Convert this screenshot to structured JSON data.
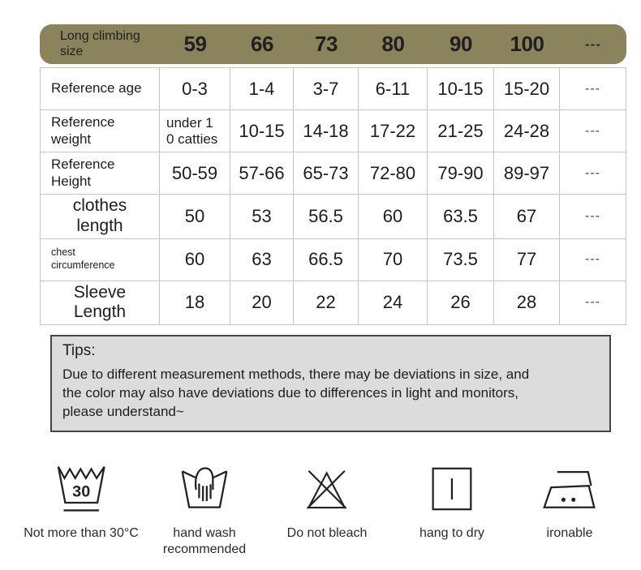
{
  "table": {
    "header": {
      "label": "Long climbing\nsize",
      "sizes": [
        "59",
        "66",
        "73",
        "80",
        "90",
        "100",
        "---"
      ]
    },
    "rows": [
      {
        "label": "Reference age",
        "style": "normal",
        "values": [
          "0-3",
          "1-4",
          "3-7",
          "6-11",
          "10-15",
          "15-20",
          "---"
        ]
      },
      {
        "label": "Reference\nweight",
        "style": "normal",
        "values": [
          "under 1\n0 catties",
          "10-15",
          "14-18",
          "17-22",
          "21-25",
          "24-28",
          "---"
        ]
      },
      {
        "label": "Reference\nHeight",
        "style": "normal",
        "values": [
          "50-59",
          "57-66",
          "65-73",
          "72-80",
          "79-90",
          "89-97",
          "---"
        ]
      },
      {
        "label": "clothes\nlength",
        "style": "big",
        "values": [
          "50",
          "53",
          "56.5",
          "60",
          "63.5",
          "67",
          "---"
        ]
      },
      {
        "label": "chest\ncircumference",
        "style": "small",
        "values": [
          "60",
          "63",
          "66.5",
          "70",
          "73.5",
          "77",
          "---"
        ]
      },
      {
        "label": "Sleeve\nLength",
        "style": "big",
        "values": [
          "18",
          "20",
          "22",
          "24",
          "26",
          "28",
          "---"
        ]
      }
    ]
  },
  "tips": {
    "title": "Tips:",
    "body": "Due to different measurement methods, there may be deviations in size, and the color may also have deviations due to differences in light and monitors, please understand~"
  },
  "care": {
    "wash_temp": "30",
    "items": [
      {
        "icon": "wash-30-icon",
        "label": "Not more than 30°C"
      },
      {
        "icon": "hand-wash-icon",
        "label": "hand wash recommended"
      },
      {
        "icon": "do-not-bleach-icon",
        "label": "Do not bleach"
      },
      {
        "icon": "hang-to-dry-icon",
        "label": "hang to dry"
      },
      {
        "icon": "ironable-icon",
        "label": "ironable"
      }
    ]
  },
  "colors": {
    "header_bg": "#8b835c",
    "tips_bg": "#dcdcdc",
    "tips_border": "#464646",
    "table_border": "#c6c6c6",
    "text": "#1d1d1d"
  }
}
